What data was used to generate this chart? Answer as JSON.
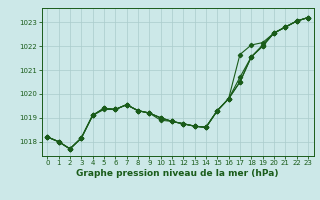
{
  "title": "Graphe pression niveau de la mer (hPa)",
  "background_color": "#cce8e8",
  "grid_color": "#aacccc",
  "line_color": "#1a5c1a",
  "xlim": [
    -0.5,
    23.5
  ],
  "ylim": [
    1017.4,
    1023.6
  ],
  "yticks": [
    1018,
    1019,
    1020,
    1021,
    1022,
    1023
  ],
  "xticks": [
    0,
    1,
    2,
    3,
    4,
    5,
    6,
    7,
    8,
    9,
    10,
    11,
    12,
    13,
    14,
    15,
    16,
    17,
    18,
    19,
    20,
    21,
    22,
    23
  ],
  "series": [
    [
      1018.2,
      1018.0,
      1017.7,
      1018.15,
      1019.1,
      1019.4,
      1019.35,
      1019.55,
      1019.3,
      1019.2,
      1019.0,
      1018.85,
      1018.75,
      1018.65,
      1018.6,
      1019.3,
      1019.8,
      1020.5,
      1021.55,
      1022.0,
      1022.55,
      1022.8,
      1023.05,
      1023.2
    ],
    [
      1018.2,
      1018.0,
      1017.7,
      1018.15,
      1019.1,
      1019.4,
      1019.35,
      1019.55,
      1019.3,
      1019.2,
      1019.0,
      1018.85,
      1018.75,
      1018.65,
      1018.6,
      1019.3,
      1019.8,
      1021.65,
      1022.05,
      1022.15,
      1022.55,
      1022.8,
      1023.05,
      1023.2
    ],
    [
      1018.2,
      1018.0,
      1017.7,
      1018.15,
      1019.1,
      1019.4,
      1019.35,
      1019.55,
      1019.3,
      1019.2,
      1019.0,
      1018.85,
      1018.75,
      1018.65,
      1018.6,
      1019.3,
      1019.8,
      1020.7,
      1021.55,
      1022.05,
      1022.55,
      1022.8,
      1023.05,
      1023.2
    ],
    [
      1018.2,
      1018.0,
      1017.7,
      1018.15,
      1019.1,
      1019.35,
      1019.35,
      1019.55,
      1019.3,
      1019.2,
      1018.9,
      1018.85,
      1018.75,
      1018.65,
      1018.6,
      1019.3,
      1019.8,
      1020.5,
      1021.55,
      1022.0,
      1022.55,
      1022.8,
      1023.05,
      1023.2
    ]
  ],
  "marker": "D",
  "marker_size": 2.2,
  "line_width": 0.8,
  "title_fontsize": 6.5,
  "tick_fontsize": 5
}
